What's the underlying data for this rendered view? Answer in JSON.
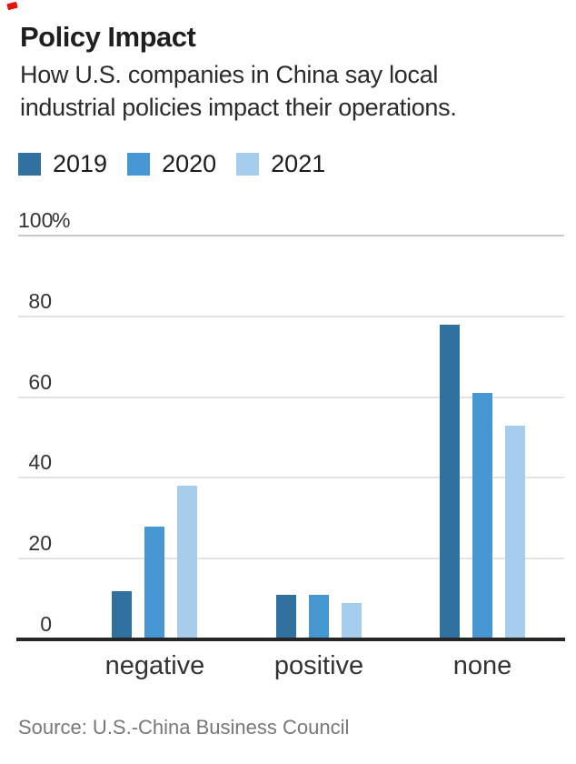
{
  "header": {
    "title": "Policy Impact",
    "subtitle_lines": [
      "How U.S. companies in China say local",
      "industrial policies impact their operations."
    ]
  },
  "footer": {
    "source": "Source: U.S.-China Business Council"
  },
  "chart_data": {
    "type": "bar",
    "title": "Policy Impact",
    "subtitle": "How U.S. companies in China say local industrial policies impact their operations.",
    "categories": [
      "negative",
      "positive",
      "none"
    ],
    "series": [
      {
        "name": "2019",
        "color": "#31719f",
        "values": [
          12,
          11,
          78
        ]
      },
      {
        "name": "2020",
        "color": "#4696d2",
        "values": [
          28,
          11,
          61
        ]
      },
      {
        "name": "2021",
        "color": "#a7cdec",
        "values": [
          38,
          9,
          53
        ]
      }
    ],
    "ylabel": "",
    "xlabel": "",
    "ylim": [
      0,
      100
    ],
    "grid": true,
    "legend_position": "top",
    "yticks": [
      {
        "value": 100,
        "text": "100",
        "suffix": "%"
      },
      {
        "value": 80,
        "text": "80",
        "suffix": ""
      },
      {
        "value": 60,
        "text": "60",
        "suffix": ""
      },
      {
        "value": 40,
        "text": "40",
        "suffix": ""
      },
      {
        "value": 20,
        "text": "20",
        "suffix": ""
      },
      {
        "value": 0,
        "text": "0",
        "suffix": ""
      }
    ]
  }
}
